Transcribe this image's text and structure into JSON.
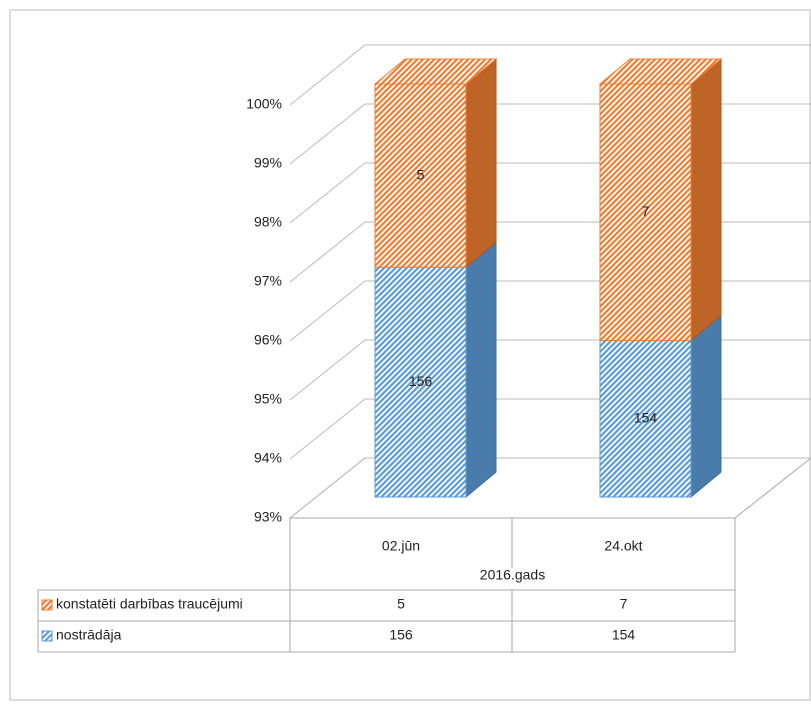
{
  "chart_data": {
    "type": "bar",
    "stacked": "percent",
    "categories": [
      "02.jūn",
      "24.okt"
    ],
    "category_group": "2016.gads",
    "series": [
      {
        "name": "nostrādāja",
        "color": "#5b9bd5",
        "values": [
          156,
          154
        ]
      },
      {
        "name": "konstatēti darbības traucējumi",
        "color": "#ed7d31",
        "values": [
          5,
          7
        ]
      }
    ],
    "ylim": [
      93,
      100
    ],
    "yticks": [
      {
        "value": 93,
        "label": "93%"
      },
      {
        "value": 94,
        "label": "94%"
      },
      {
        "value": 95,
        "label": "95%"
      },
      {
        "value": 96,
        "label": "96%"
      },
      {
        "value": 97,
        "label": "97%"
      },
      {
        "value": 98,
        "label": "98%"
      },
      {
        "value": 99,
        "label": "99%"
      },
      {
        "value": 100,
        "label": "100%"
      }
    ],
    "grid": true,
    "data_table": true
  }
}
